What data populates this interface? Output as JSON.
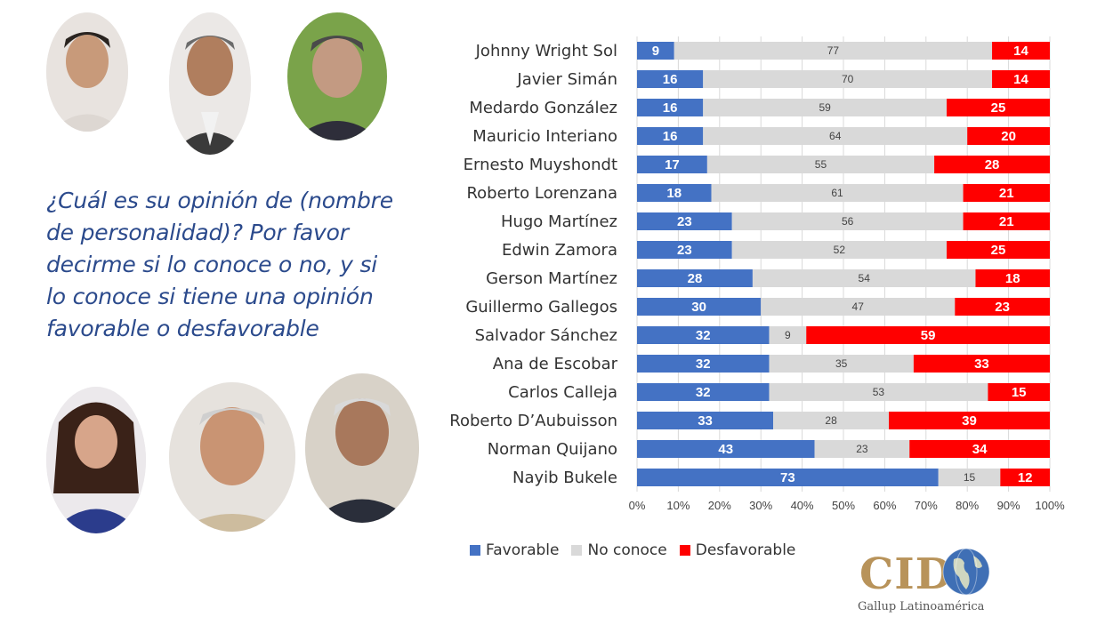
{
  "question": "¿Cuál es su opinión de (nombre de personalidad)? Por favor decirme si lo conoce o no, y si lo conoce si tiene una opinión favorable o desfavorable",
  "colors": {
    "favorable": "#4472c4",
    "no_conoce": "#d9d9d9",
    "desfavorable": "#ff0000"
  },
  "legend": [
    "Favorable",
    "No conoce",
    "Desfavorable"
  ],
  "logo": {
    "name": "CID",
    "subtitle": "Gallup Latinoamérica"
  },
  "chart_data": {
    "type": "bar",
    "orientation": "horizontal",
    "stacked": "percent",
    "categories": [
      "Johnny Wright Sol",
      "Javier Simán",
      "Medardo González",
      "Mauricio Interiano",
      "Ernesto Muyshondt",
      "Roberto Lorenzana",
      "Hugo Martínez",
      "Edwin Zamora",
      "Gerson Martínez",
      "Guillermo Gallegos",
      "Salvador Sánchez",
      "Ana de Escobar",
      "Carlos Calleja",
      "Roberto D’Aubuisson",
      "Norman Quijano",
      "Nayib Bukele"
    ],
    "series": [
      {
        "name": "Favorable",
        "values": [
          9,
          16,
          16,
          16,
          17,
          18,
          23,
          23,
          28,
          30,
          32,
          32,
          32,
          33,
          43,
          73
        ]
      },
      {
        "name": "No conoce",
        "values": [
          77,
          70,
          59,
          64,
          55,
          61,
          56,
          52,
          54,
          47,
          9,
          35,
          53,
          28,
          23,
          15
        ]
      },
      {
        "name": "Desfavorable",
        "values": [
          14,
          14,
          25,
          20,
          28,
          21,
          21,
          25,
          18,
          23,
          59,
          33,
          15,
          39,
          34,
          12
        ]
      }
    ],
    "xticks": [
      "0%",
      "10%",
      "20%",
      "30%",
      "40%",
      "50%",
      "60%",
      "70%",
      "80%",
      "90%",
      "100%"
    ],
    "xlim": [
      0,
      100
    ],
    "grid": true,
    "legend_position": "bottom"
  }
}
